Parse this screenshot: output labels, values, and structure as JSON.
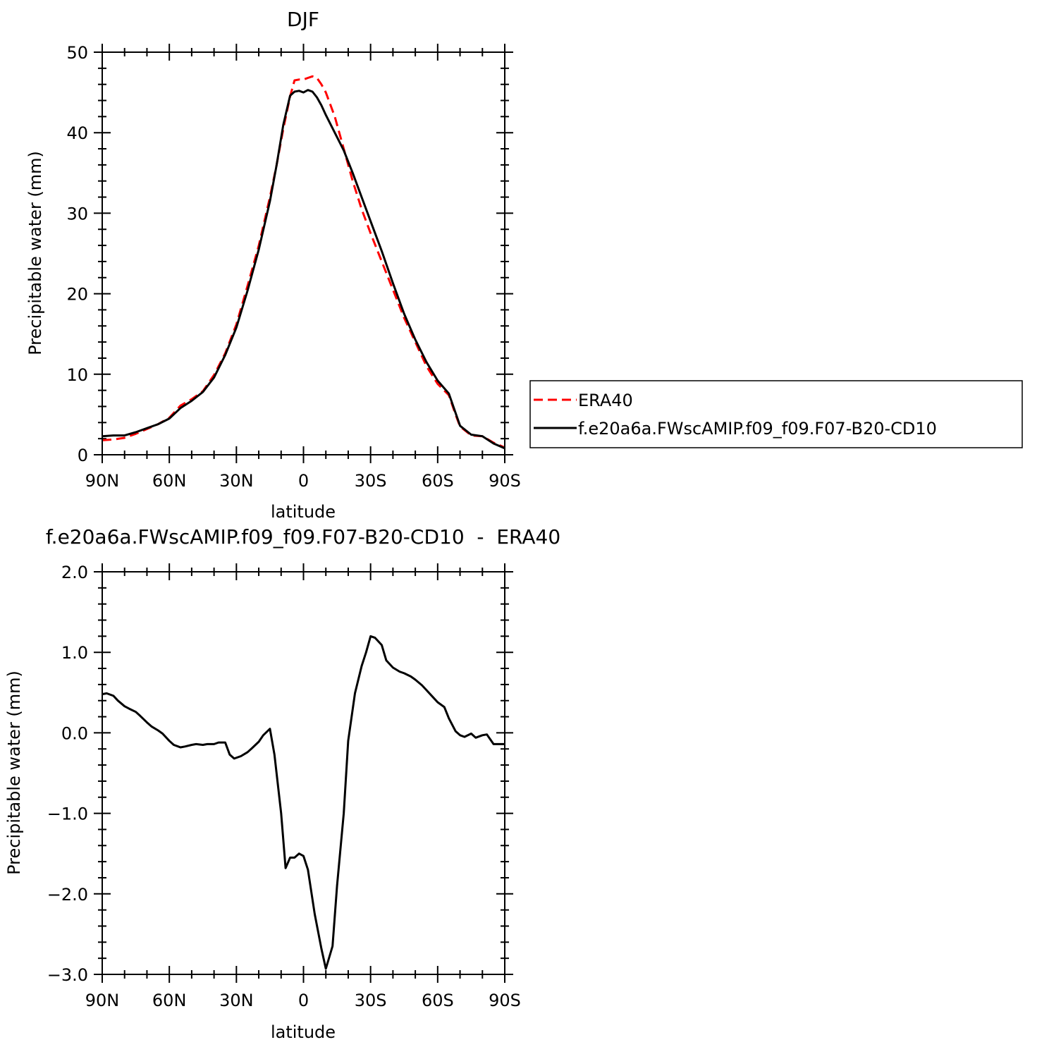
{
  "chart_data": [
    {
      "type": "line",
      "title": "DJF",
      "xlabel": "latitude",
      "ylabel": "Precipitable water (mm)",
      "xlim": [
        90,
        -90
      ],
      "ylim": [
        0,
        50
      ],
      "x_ticks": [
        {
          "value": 90,
          "label": "90N"
        },
        {
          "value": 60,
          "label": "60N"
        },
        {
          "value": 30,
          "label": "30N"
        },
        {
          "value": 0,
          "label": "0"
        },
        {
          "value": -30,
          "label": "30S"
        },
        {
          "value": -60,
          "label": "60S"
        },
        {
          "value": -90,
          "label": "90S"
        }
      ],
      "y_ticks": [
        {
          "value": 0,
          "label": "0"
        },
        {
          "value": 10,
          "label": "10"
        },
        {
          "value": 20,
          "label": "20"
        },
        {
          "value": 30,
          "label": "30"
        },
        {
          "value": 40,
          "label": "40"
        },
        {
          "value": 50,
          "label": "50"
        }
      ],
      "legend_position": "right",
      "grid": false,
      "series": [
        {
          "name": "ERA40",
          "color": "#ff0000",
          "dash": "dashed",
          "points": [
            [
              90,
              1.8
            ],
            [
              85,
              1.9
            ],
            [
              80,
              2.1
            ],
            [
              75,
              2.6
            ],
            [
              70,
              3.2
            ],
            [
              65,
              3.8
            ],
            [
              60,
              4.6
            ],
            [
              55,
              6.1
            ],
            [
              50,
              6.9
            ],
            [
              45,
              7.9
            ],
            [
              40,
              9.9
            ],
            [
              35,
              12.6
            ],
            [
              30,
              16.2
            ],
            [
              25,
              21.0
            ],
            [
              20,
              26.0
            ],
            [
              15,
              32.0
            ],
            [
              12,
              36.0
            ],
            [
              9,
              40.5
            ],
            [
              6,
              44.5
            ],
            [
              4,
              46.5
            ],
            [
              2,
              46.6
            ],
            [
              0,
              46.6
            ],
            [
              -2,
              46.8
            ],
            [
              -4,
              47.0
            ],
            [
              -6,
              46.8
            ],
            [
              -8,
              46.0
            ],
            [
              -10,
              45.0
            ],
            [
              -14,
              42.0
            ],
            [
              -18,
              38.0
            ],
            [
              -22,
              34.0
            ],
            [
              -26,
              30.5
            ],
            [
              -30,
              27.5
            ],
            [
              -35,
              24.0
            ],
            [
              -40,
              20.5
            ],
            [
              -45,
              17.0
            ],
            [
              -50,
              14.0
            ],
            [
              -55,
              11.0
            ],
            [
              -60,
              8.8
            ],
            [
              -65,
              7.4
            ],
            [
              -68,
              5.0
            ],
            [
              -70,
              3.5
            ],
            [
              -75,
              2.4
            ],
            [
              -80,
              2.3
            ],
            [
              -85,
              1.5
            ],
            [
              -90,
              0.9
            ]
          ]
        },
        {
          "name": "f.e20a6a.FWscAMIP.f09_f09.F07-B20-CD10",
          "color": "#000000",
          "dash": "solid",
          "points": [
            [
              90,
              2.3
            ],
            [
              85,
              2.4
            ],
            [
              80,
              2.4
            ],
            [
              75,
              2.8
            ],
            [
              70,
              3.3
            ],
            [
              65,
              3.8
            ],
            [
              60,
              4.5
            ],
            [
              55,
              5.8
            ],
            [
              50,
              6.7
            ],
            [
              45,
              7.8
            ],
            [
              40,
              9.6
            ],
            [
              35,
              12.4
            ],
            [
              30,
              15.8
            ],
            [
              25,
              20.4
            ],
            [
              20,
              25.5
            ],
            [
              15,
              31.5
            ],
            [
              12,
              36.0
            ],
            [
              9,
              41.0
            ],
            [
              6,
              44.6
            ],
            [
              4,
              45.1
            ],
            [
              2,
              45.2
            ],
            [
              0,
              45.0
            ],
            [
              -2,
              45.3
            ],
            [
              -4,
              45.1
            ],
            [
              -6,
              44.4
            ],
            [
              -8,
              43.4
            ],
            [
              -10,
              42.2
            ],
            [
              -14,
              40.0
            ],
            [
              -18,
              37.8
            ],
            [
              -22,
              35.0
            ],
            [
              -26,
              32.0
            ],
            [
              -30,
              29.0
            ],
            [
              -35,
              25.3
            ],
            [
              -40,
              21.3
            ],
            [
              -45,
              17.5
            ],
            [
              -50,
              14.3
            ],
            [
              -55,
              11.5
            ],
            [
              -60,
              9.2
            ],
            [
              -65,
              7.6
            ],
            [
              -68,
              5.2
            ],
            [
              -70,
              3.6
            ],
            [
              -75,
              2.5
            ],
            [
              -80,
              2.3
            ],
            [
              -85,
              1.4
            ],
            [
              -90,
              0.8
            ]
          ]
        }
      ]
    },
    {
      "type": "line",
      "title": "f.e20a6a.FWscAMIP.f09_f09.F07-B20-CD10  -  ERA40",
      "xlabel": "latitude",
      "ylabel": "Precipitable water (mm)",
      "xlim": [
        90,
        -90
      ],
      "ylim": [
        -3.0,
        2.0
      ],
      "x_ticks": [
        {
          "value": 90,
          "label": "90N"
        },
        {
          "value": 60,
          "label": "60N"
        },
        {
          "value": 30,
          "label": "30N"
        },
        {
          "value": 0,
          "label": "0"
        },
        {
          "value": -30,
          "label": "30S"
        },
        {
          "value": -60,
          "label": "60S"
        },
        {
          "value": -90,
          "label": "90S"
        }
      ],
      "y_ticks": [
        {
          "value": -3.0,
          "label": "−3.0"
        },
        {
          "value": -2.0,
          "label": "−2.0"
        },
        {
          "value": -1.0,
          "label": "−1.0"
        },
        {
          "value": 0.0,
          "label": "0.0"
        },
        {
          "value": 1.0,
          "label": "1.0"
        },
        {
          "value": 2.0,
          "label": "2.0"
        }
      ],
      "grid": false,
      "series": [
        {
          "name": "",
          "color": "#000000",
          "dash": "solid",
          "points": [
            [
              90,
              0.48
            ],
            [
              88,
              0.49
            ],
            [
              85,
              0.46
            ],
            [
              83,
              0.4
            ],
            [
              80,
              0.33
            ],
            [
              78,
              0.3
            ],
            [
              75,
              0.26
            ],
            [
              73,
              0.21
            ],
            [
              70,
              0.13
            ],
            [
              68,
              0.08
            ],
            [
              65,
              0.03
            ],
            [
              63,
              -0.01
            ],
            [
              60,
              -0.1
            ],
            [
              58,
              -0.15
            ],
            [
              55,
              -0.18
            ],
            [
              53,
              -0.17
            ],
            [
              50,
              -0.15
            ],
            [
              48,
              -0.14
            ],
            [
              45,
              -0.15
            ],
            [
              43,
              -0.14
            ],
            [
              40,
              -0.14
            ],
            [
              38,
              -0.12
            ],
            [
              35,
              -0.12
            ],
            [
              33,
              -0.27
            ],
            [
              31,
              -0.32
            ],
            [
              28,
              -0.29
            ],
            [
              25,
              -0.24
            ],
            [
              23,
              -0.19
            ],
            [
              20,
              -0.11
            ],
            [
              18,
              -0.03
            ],
            [
              15,
              0.05
            ],
            [
              13,
              -0.27
            ],
            [
              10,
              -1.0
            ],
            [
              8,
              -1.68
            ],
            [
              6,
              -1.55
            ],
            [
              4,
              -1.55
            ],
            [
              2,
              -1.5
            ],
            [
              0,
              -1.53
            ],
            [
              -2,
              -1.7
            ],
            [
              -5,
              -2.25
            ],
            [
              -8,
              -2.68
            ],
            [
              -10,
              -2.93
            ],
            [
              -13,
              -2.65
            ],
            [
              -15,
              -1.9
            ],
            [
              -18,
              -1.0
            ],
            [
              -20,
              -0.1
            ],
            [
              -23,
              0.49
            ],
            [
              -26,
              0.83
            ],
            [
              -28,
              1.0
            ],
            [
              -30,
              1.2
            ],
            [
              -32,
              1.18
            ],
            [
              -35,
              1.09
            ],
            [
              -37,
              0.9
            ],
            [
              -40,
              0.81
            ],
            [
              -43,
              0.76
            ],
            [
              -45,
              0.74
            ],
            [
              -48,
              0.7
            ],
            [
              -50,
              0.66
            ],
            [
              -53,
              0.59
            ],
            [
              -55,
              0.53
            ],
            [
              -58,
              0.44
            ],
            [
              -60,
              0.38
            ],
            [
              -63,
              0.32
            ],
            [
              -65,
              0.18
            ],
            [
              -68,
              0.02
            ],
            [
              -70,
              -0.03
            ],
            [
              -72,
              -0.05
            ],
            [
              -75,
              -0.01
            ],
            [
              -77,
              -0.06
            ],
            [
              -80,
              -0.03
            ],
            [
              -82,
              -0.02
            ],
            [
              -85,
              -0.14
            ],
            [
              -90,
              -0.14
            ]
          ]
        }
      ]
    }
  ]
}
